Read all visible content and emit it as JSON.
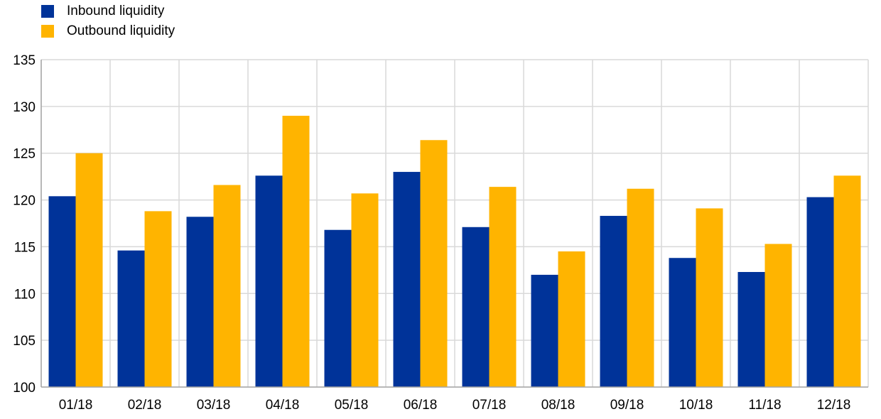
{
  "chart_data": {
    "type": "bar",
    "title": "",
    "xlabel": "",
    "ylabel": "",
    "categories": [
      "01/18",
      "02/18",
      "03/18",
      "04/18",
      "05/18",
      "06/18",
      "07/18",
      "08/18",
      "09/18",
      "10/18",
      "11/18",
      "12/18"
    ],
    "series": [
      {
        "name": "Inbound liquidity",
        "color": "#003399",
        "values": [
          120.4,
          114.6,
          118.2,
          122.6,
          116.8,
          123.0,
          117.1,
          112.0,
          118.3,
          113.8,
          112.3,
          120.3
        ]
      },
      {
        "name": "Outbound liquidity",
        "color": "#ffb400",
        "values": [
          125.0,
          118.8,
          121.6,
          129.0,
          120.7,
          126.4,
          121.4,
          114.5,
          121.2,
          119.1,
          115.3,
          122.6
        ]
      }
    ],
    "ylim": [
      100,
      135
    ],
    "yticks": [
      100,
      105,
      110,
      115,
      120,
      125,
      130,
      135
    ],
    "grid": true,
    "legend_position": "top-left"
  }
}
